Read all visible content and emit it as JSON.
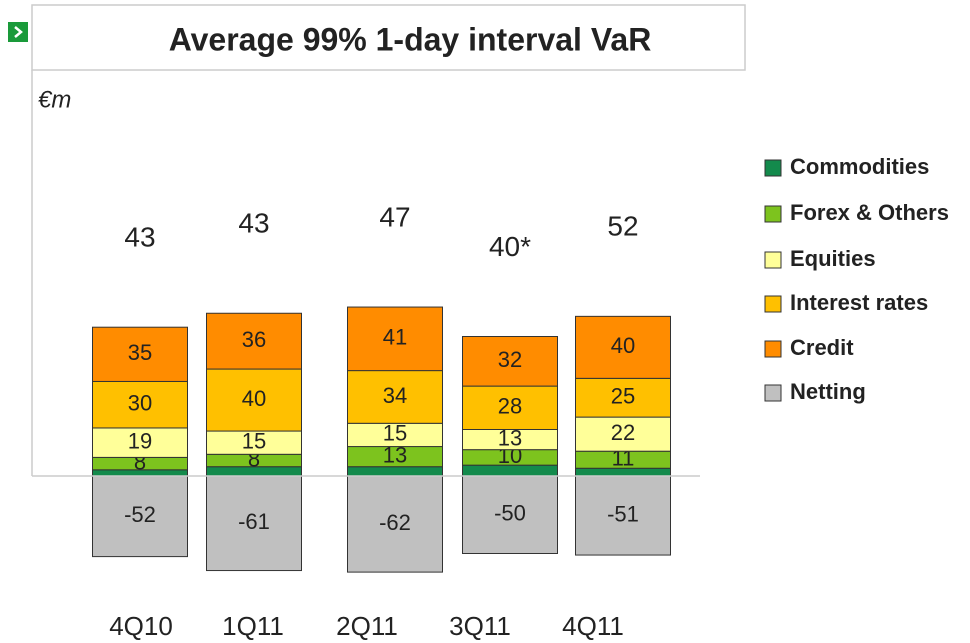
{
  "chart_data": {
    "type": "stacked-bar",
    "title": "Average 99% 1-day interval VaR",
    "unit_label": "€m",
    "categories": [
      "4Q10",
      "1Q11",
      "2Q11",
      "3Q11",
      "4Q11"
    ],
    "series": [
      {
        "name": "Commodities",
        "color": "#138a4c",
        "values": [
          4,
          6,
          6,
          7,
          5
        ]
      },
      {
        "name": "Forex & Others",
        "color": "#7dc31e",
        "values": [
          8,
          8,
          13,
          10,
          11
        ]
      },
      {
        "name": "Equities",
        "color": "#ffff99",
        "values": [
          19,
          15,
          15,
          13,
          22
        ]
      },
      {
        "name": "Interest rates",
        "color": "#ffc000",
        "values": [
          30,
          40,
          34,
          28,
          25
        ]
      },
      {
        "name": "Credit",
        "color": "#ff8c00",
        "values": [
          35,
          36,
          41,
          32,
          40
        ]
      },
      {
        "name": "Netting",
        "color": "#c0c0c0",
        "values": [
          -52,
          -61,
          -62,
          -50,
          -51
        ]
      }
    ],
    "totals": {
      "values": [
        43,
        43,
        47,
        40,
        52
      ],
      "value_labels": [
        "43",
        "43",
        "47",
        "40*",
        "52"
      ]
    }
  }
}
